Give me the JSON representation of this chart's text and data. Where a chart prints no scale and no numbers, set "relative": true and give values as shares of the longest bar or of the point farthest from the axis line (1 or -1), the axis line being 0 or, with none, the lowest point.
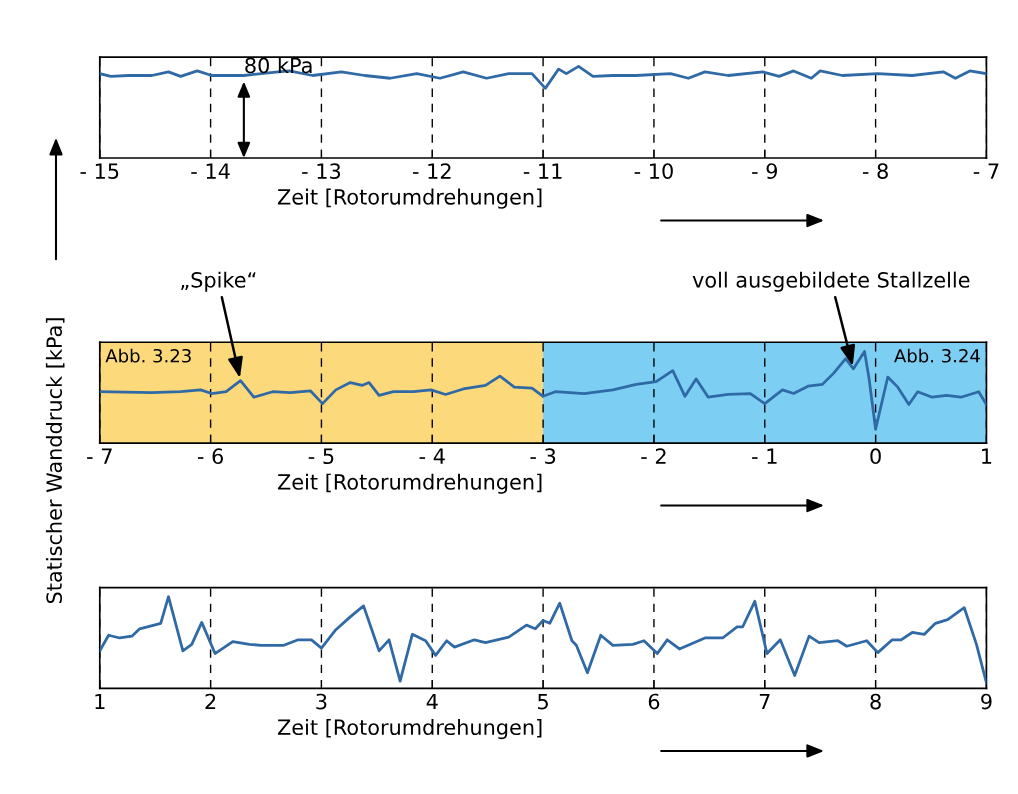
{
  "chart_data": [
    {
      "type": "line",
      "relative": true,
      "xlabel": "Zeit [Rotorumdrehungen]",
      "xlim": [
        -15,
        -7
      ],
      "xticks": [
        {
          "value": -15,
          "label": "- 15"
        },
        {
          "value": -14,
          "label": "- 14"
        },
        {
          "value": -13,
          "label": "- 13"
        },
        {
          "value": -12,
          "label": "- 12"
        },
        {
          "value": -11,
          "label": "- 11"
        },
        {
          "value": -10,
          "label": "- 10"
        },
        {
          "value": -9,
          "label": "- 9"
        },
        {
          "value": -8,
          "label": "- 8"
        },
        {
          "value": -7,
          "label": "- 7"
        }
      ],
      "grid": "x",
      "annotations": [
        "80 kPa"
      ],
      "series": [
        {
          "color": "#2f6aa6",
          "x": [
            -15,
            -14.9,
            -14.74,
            -14.53,
            -14.38,
            -14.27,
            -14.12,
            -13.99,
            -13.7,
            -13.39,
            -13.29,
            -13.08,
            -12.82,
            -12.61,
            -12.38,
            -12.14,
            -11.93,
            -11.72,
            -11.51,
            -11.31,
            -11.1,
            -10.98,
            -10.86,
            -10.79,
            -10.68,
            -10.55,
            -10.37,
            -10.16,
            -9.85,
            -9.69,
            -9.54,
            -9.33,
            -9.02,
            -8.87,
            -8.74,
            -8.58,
            -8.5,
            -8.3,
            -7.98,
            -7.67,
            -7.39,
            -7.28,
            -7.15,
            -7
          ],
          "values": [
            0.92,
            0.89,
            0.9,
            0.9,
            0.94,
            0.89,
            0.95,
            0.9,
            0.9,
            0.94,
            0.95,
            0.9,
            0.94,
            0.9,
            0.87,
            0.92,
            0.87,
            0.94,
            0.87,
            0.92,
            0.92,
            0.76,
            0.97,
            0.92,
            1.0,
            0.89,
            0.9,
            0.9,
            0.92,
            0.87,
            0.94,
            0.9,
            0.94,
            0.89,
            0.95,
            0.87,
            0.95,
            0.9,
            0.92,
            0.9,
            0.94,
            0.87,
            0.95,
            0.92
          ]
        }
      ]
    },
    {
      "type": "line",
      "relative": true,
      "xlabel": "Zeit [Rotorumdrehungen]",
      "ylabel": "Statischer Wanddruck [kPa]",
      "xlim": [
        -7,
        1
      ],
      "xticks": [
        {
          "value": -7,
          "label": "- 7"
        },
        {
          "value": -6,
          "label": "- 6"
        },
        {
          "value": -5,
          "label": "- 5"
        },
        {
          "value": -4,
          "label": "- 4"
        },
        {
          "value": -3,
          "label": "- 3"
        },
        {
          "value": -2,
          "label": "- 2"
        },
        {
          "value": -1,
          "label": "- 1"
        },
        0,
        1
      ],
      "grid": "x",
      "bands": [
        {
          "axis": "x",
          "from": -7,
          "to": -3,
          "label": "Abb. 3.23",
          "color": "#fcd97a"
        },
        {
          "axis": "x",
          "from": -3,
          "to": 1,
          "label": "Abb. 3.24",
          "color": "#7ccff3"
        }
      ],
      "annotations": [
        {
          "text": "„Spike“",
          "x": -5.73,
          "y": 0.68
        },
        {
          "text": "voll ausgebildete Stallzelle",
          "x": -0.2,
          "y": 0.81
        }
      ],
      "series": [
        {
          "color": "#2f6aa6",
          "x": [
            -7,
            -6.53,
            -6.27,
            -6.09,
            -5.99,
            -5.86,
            -5.73,
            -5.61,
            -5.44,
            -5.28,
            -5.1,
            -4.99,
            -4.87,
            -4.74,
            -4.63,
            -4.57,
            -4.48,
            -4.35,
            -4.17,
            -4.01,
            -3.88,
            -3.72,
            -3.52,
            -3.39,
            -3.26,
            -3.1,
            -3.0,
            -2.89,
            -2.63,
            -2.37,
            -2.16,
            -1.98,
            -1.83,
            -1.72,
            -1.62,
            -1.51,
            -1.33,
            -1.13,
            -1.0,
            -0.84,
            -0.74,
            -0.61,
            -0.48,
            -0.38,
            -0.27,
            -0.2,
            -0.1,
            -0.06,
            0.0,
            0.11,
            0.2,
            0.3,
            0.38,
            0.51,
            0.64,
            0.77,
            0.93,
            1.0
          ],
          "values": [
            0.56,
            0.55,
            0.56,
            0.58,
            0.54,
            0.56,
            0.68,
            0.5,
            0.56,
            0.55,
            0.57,
            0.43,
            0.58,
            0.66,
            0.63,
            0.66,
            0.52,
            0.56,
            0.56,
            0.58,
            0.53,
            0.59,
            0.63,
            0.73,
            0.61,
            0.6,
            0.51,
            0.56,
            0.54,
            0.58,
            0.64,
            0.67,
            0.79,
            0.51,
            0.7,
            0.5,
            0.53,
            0.54,
            0.43,
            0.58,
            0.54,
            0.62,
            0.64,
            0.76,
            0.92,
            0.81,
            1.0,
            0.71,
            0.15,
            0.72,
            0.61,
            0.42,
            0.56,
            0.5,
            0.52,
            0.5,
            0.56,
            0.42
          ]
        }
      ]
    },
    {
      "type": "line",
      "relative": true,
      "xlabel": "Zeit [Rotorumdrehungen]",
      "xlim": [
        1,
        9
      ],
      "xticks": [
        1,
        2,
        3,
        4,
        5,
        6,
        7,
        8,
        9
      ],
      "grid": "x",
      "series": [
        {
          "color": "#2f6aa6",
          "x": [
            1.0,
            1.08,
            1.18,
            1.29,
            1.36,
            1.49,
            1.55,
            1.62,
            1.75,
            1.83,
            1.92,
            2.04,
            2.2,
            2.35,
            2.46,
            2.66,
            2.79,
            2.91,
            3.0,
            3.13,
            3.26,
            3.38,
            3.52,
            3.61,
            3.71,
            3.82,
            3.94,
            4.03,
            4.13,
            4.2,
            4.38,
            4.48,
            4.69,
            4.85,
            4.93,
            5.0,
            5.06,
            5.15,
            5.26,
            5.3,
            5.4,
            5.52,
            5.63,
            5.81,
            5.91,
            6.03,
            6.12,
            6.23,
            6.46,
            6.62,
            6.75,
            6.8,
            6.91,
            7.02,
            7.14,
            7.27,
            7.4,
            7.49,
            7.66,
            7.74,
            7.92,
            8.02,
            8.15,
            8.23,
            8.33,
            8.44,
            8.54,
            8.65,
            8.8,
            8.91,
            9.0
          ],
          "values": [
            0.41,
            0.58,
            0.55,
            0.57,
            0.65,
            0.69,
            0.71,
            1.0,
            0.41,
            0.48,
            0.72,
            0.38,
            0.51,
            0.48,
            0.47,
            0.47,
            0.53,
            0.53,
            0.44,
            0.64,
            0.78,
            0.9,
            0.41,
            0.53,
            0.08,
            0.59,
            0.52,
            0.36,
            0.52,
            0.45,
            0.53,
            0.5,
            0.56,
            0.69,
            0.65,
            0.74,
            0.71,
            0.93,
            0.52,
            0.47,
            0.17,
            0.58,
            0.47,
            0.48,
            0.52,
            0.38,
            0.53,
            0.43,
            0.55,
            0.55,
            0.67,
            0.67,
            0.95,
            0.38,
            0.53,
            0.14,
            0.57,
            0.5,
            0.52,
            0.46,
            0.52,
            0.39,
            0.53,
            0.53,
            0.61,
            0.59,
            0.71,
            0.75,
            0.88,
            0.48,
            0.06
          ]
        }
      ]
    }
  ]
}
